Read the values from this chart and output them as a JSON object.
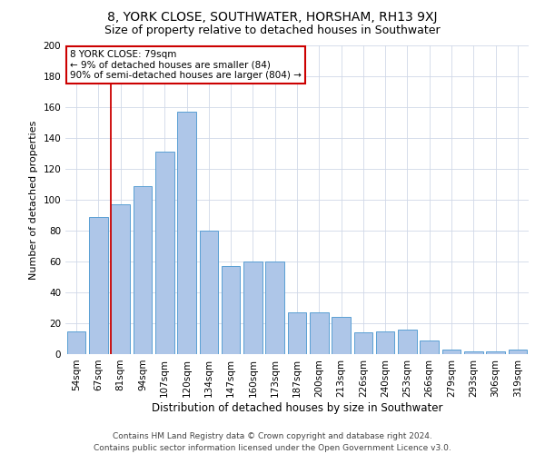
{
  "title": "8, YORK CLOSE, SOUTHWATER, HORSHAM, RH13 9XJ",
  "subtitle": "Size of property relative to detached houses in Southwater",
  "xlabel": "Distribution of detached houses by size in Southwater",
  "ylabel": "Number of detached properties",
  "categories": [
    "54sqm",
    "67sqm",
    "81sqm",
    "94sqm",
    "107sqm",
    "120sqm",
    "134sqm",
    "147sqm",
    "160sqm",
    "173sqm",
    "187sqm",
    "200sqm",
    "213sqm",
    "226sqm",
    "240sqm",
    "253sqm",
    "266sqm",
    "279sqm",
    "293sqm",
    "306sqm",
    "319sqm"
  ],
  "values": [
    15,
    89,
    97,
    109,
    131,
    157,
    80,
    57,
    60,
    60,
    27,
    27,
    24,
    14,
    15,
    16,
    9,
    3,
    2,
    2,
    3
  ],
  "bar_color": "#aec6e8",
  "bar_edge_color": "#5a9fd4",
  "vline_x_index": 2,
  "vline_color": "#cc0000",
  "annotation_line1": "8 YORK CLOSE: 79sqm",
  "annotation_line2": "← 9% of detached houses are smaller (84)",
  "annotation_line3": "90% of semi-detached houses are larger (804) →",
  "annotation_box_color": "#ffffff",
  "annotation_box_edgecolor": "#cc0000",
  "ylim": [
    0,
    200
  ],
  "yticks": [
    0,
    20,
    40,
    60,
    80,
    100,
    120,
    140,
    160,
    180,
    200
  ],
  "footer_line1": "Contains HM Land Registry data © Crown copyright and database right 2024.",
  "footer_line2": "Contains public sector information licensed under the Open Government Licence v3.0.",
  "background_color": "#ffffff",
  "grid_color": "#d0d8e8",
  "title_fontsize": 10,
  "subtitle_fontsize": 9,
  "ylabel_fontsize": 8,
  "xlabel_fontsize": 8.5,
  "tick_fontsize": 7.5,
  "annotation_fontsize": 7.5,
  "footer_fontsize": 6.5
}
